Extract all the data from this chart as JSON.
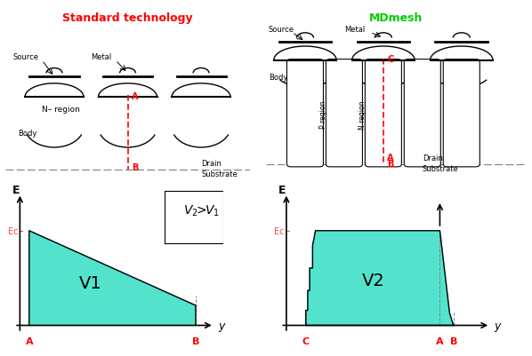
{
  "title_left": "Standard technology",
  "title_right": "MDmesh",
  "title_left_color": "#ff0000",
  "title_right_color": "#00cc00",
  "teal_color": "#40e0c8",
  "left_label": "V1",
  "right_label": "V2",
  "ec_color": "#ff4444",
  "bg_color": "#ffffff"
}
